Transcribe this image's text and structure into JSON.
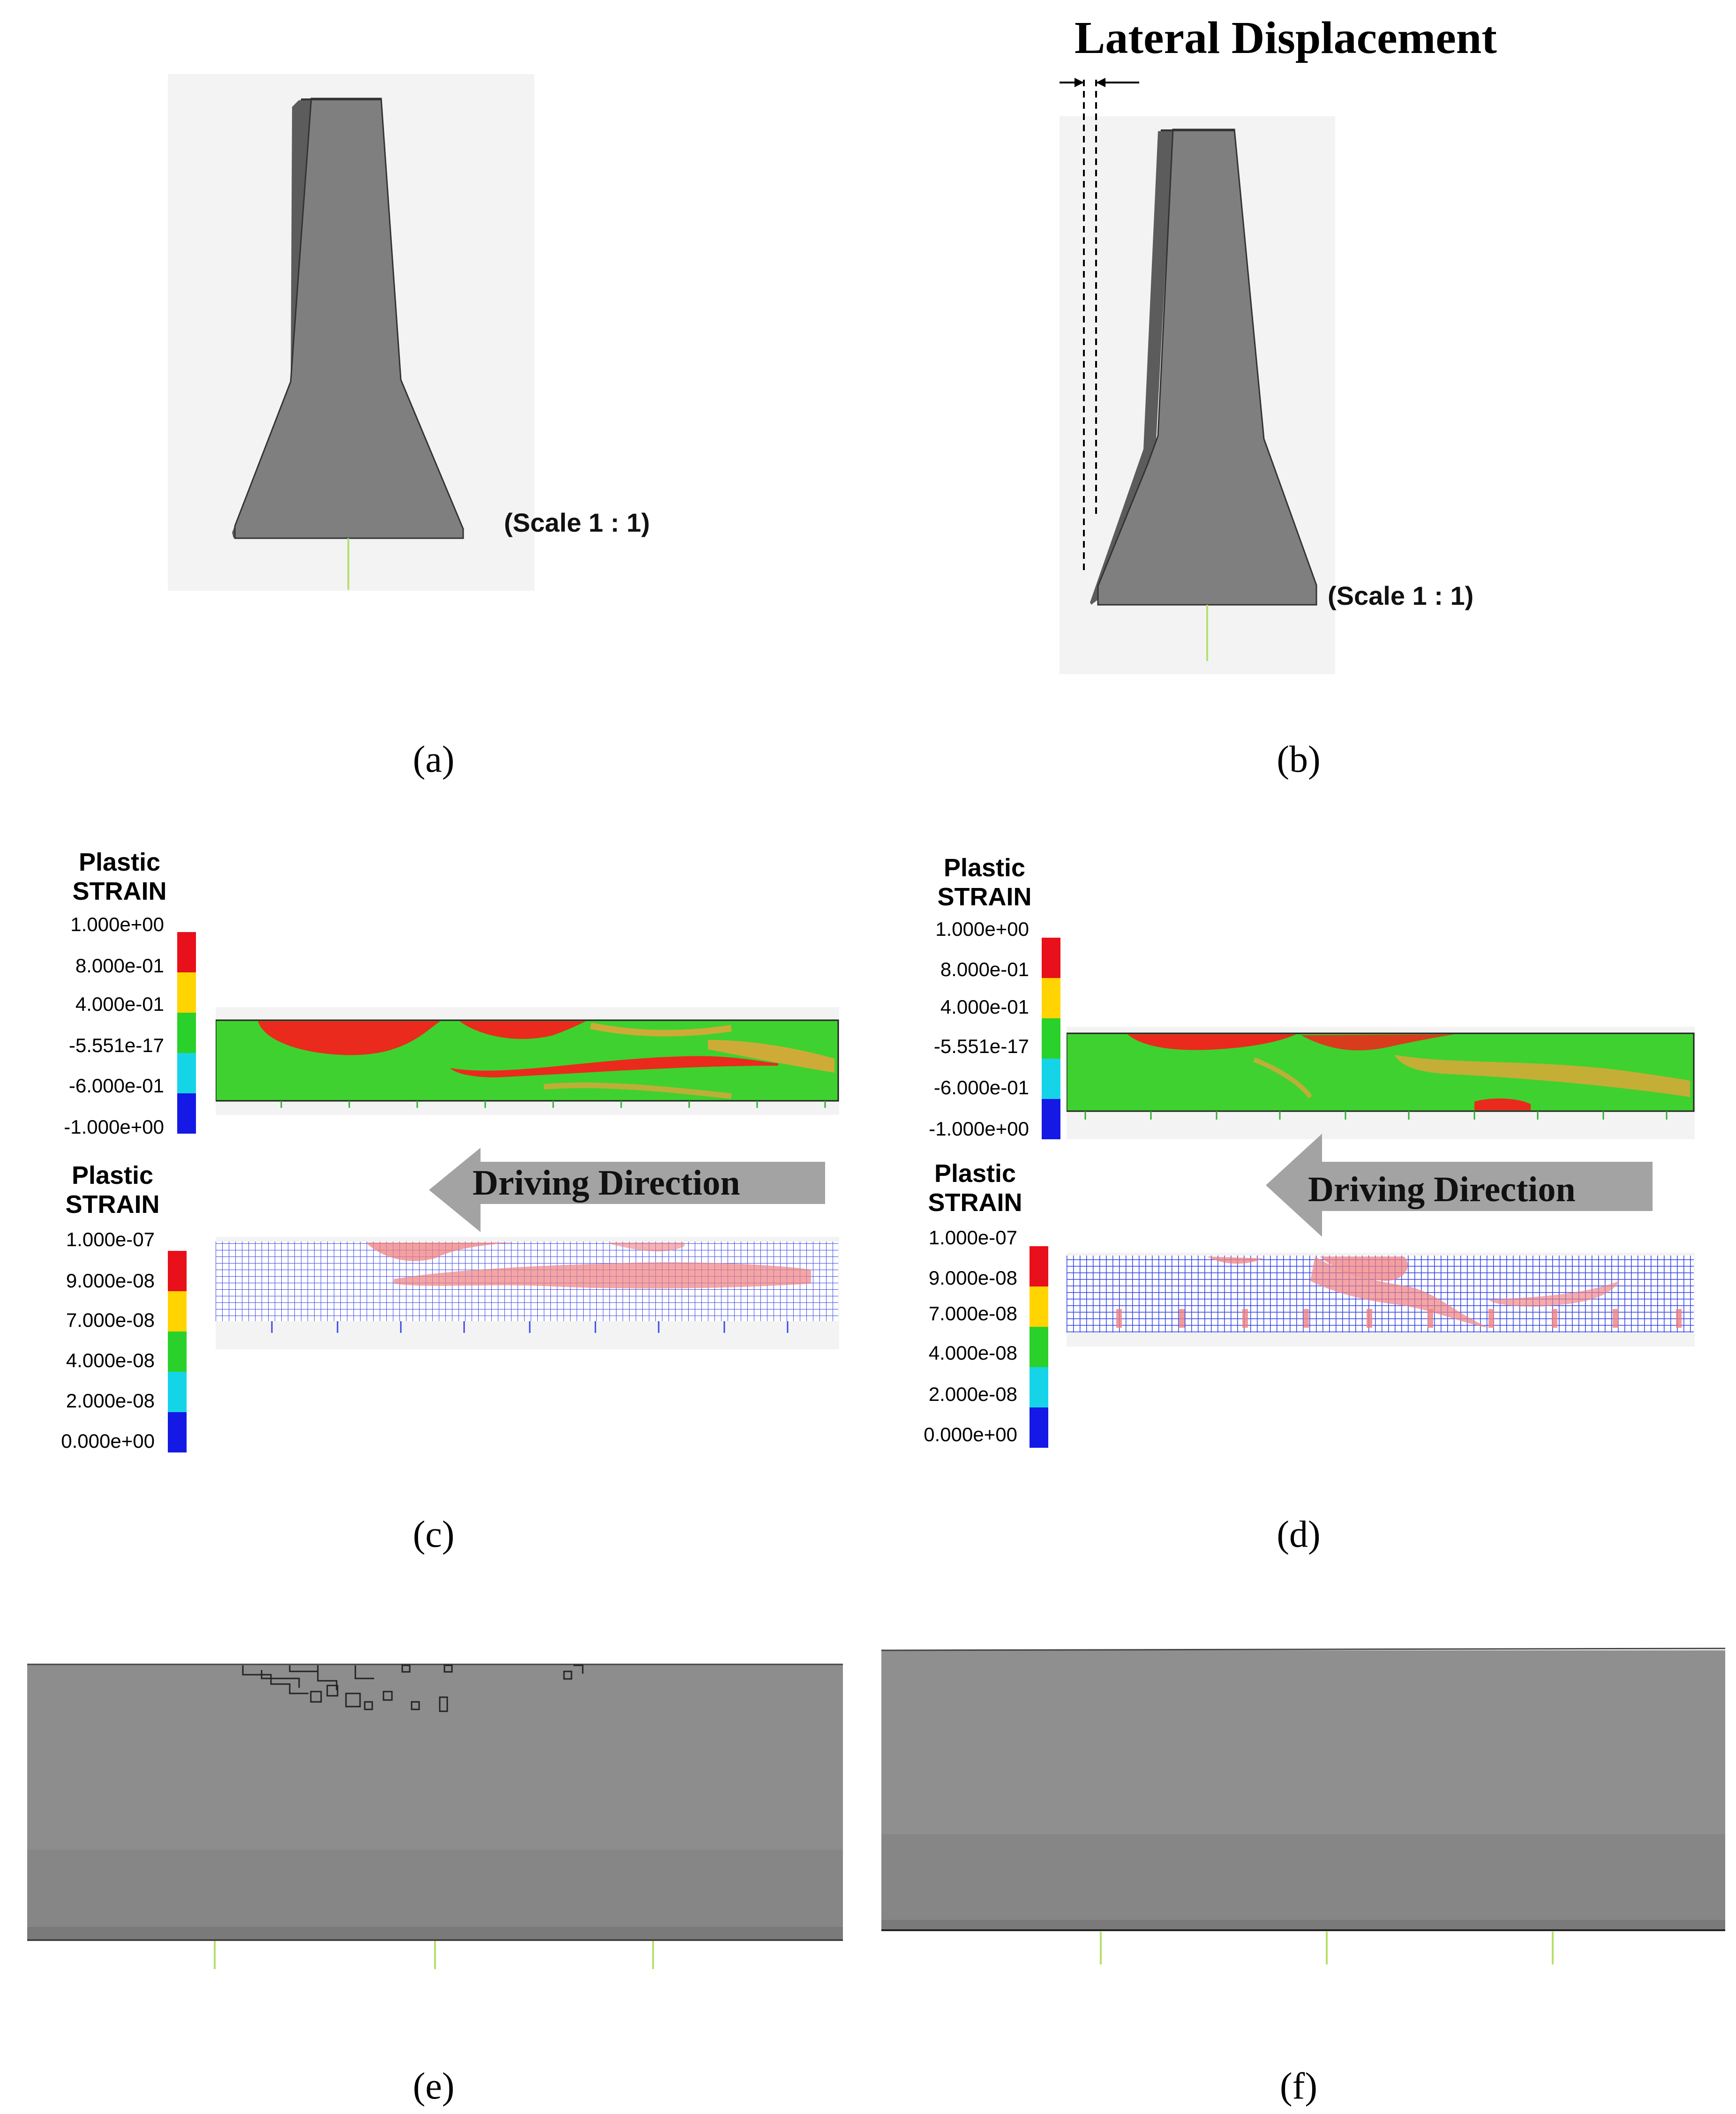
{
  "panels": {
    "a": {
      "label": "(a)",
      "scale": "(Scale 1 : 1)"
    },
    "b": {
      "label": "(b)",
      "scale": "(Scale 1 : 1)",
      "title": "Lateral Displacement"
    },
    "c": {
      "label": "(c)",
      "legend_top": {
        "title_line1": "Plastic",
        "title_line2": "STRAIN",
        "ticks": [
          "1.000e+00",
          "8.000e-01",
          "4.000e-01",
          "-5.551e-17",
          "-6.000e-01",
          "-1.000e+00"
        ]
      },
      "direction": "Driving  Direction",
      "legend_bottom": {
        "title_line1": "Plastic",
        "title_line2": "STRAIN",
        "ticks": [
          "1.000e-07",
          "9.000e-08",
          "7.000e-08",
          "4.000e-08",
          "2.000e-08",
          "0.000e+00"
        ]
      }
    },
    "d": {
      "label": "(d)",
      "legend_top": {
        "title_line1": "Plastic",
        "title_line2": "STRAIN",
        "ticks": [
          "1.000e+00",
          "8.000e-01",
          "4.000e-01",
          "-5.551e-17",
          "-6.000e-01",
          "-1.000e+00"
        ]
      },
      "direction": "Driving  Direction",
      "legend_bottom": {
        "title_line1": "Plastic",
        "title_line2": "STRAIN",
        "ticks": [
          "1.000e-07",
          "9.000e-08",
          "7.000e-08",
          "4.000e-08",
          "2.000e-08",
          "0.000e+00"
        ]
      }
    },
    "e": {
      "label": "(e)"
    },
    "f": {
      "label": "(f)"
    }
  },
  "colors": {
    "legend_scale": [
      "#e8101a",
      "#ffd400",
      "#2bd12b",
      "#16d4e8",
      "#1419e6"
    ],
    "barrier_gray": "#7f7f7f",
    "strain_green": "#3fd12f",
    "strain_red": "#ea2a1c",
    "mesh_blue": "#2f3fe6",
    "arrow_gray": "#a3a3a3"
  }
}
